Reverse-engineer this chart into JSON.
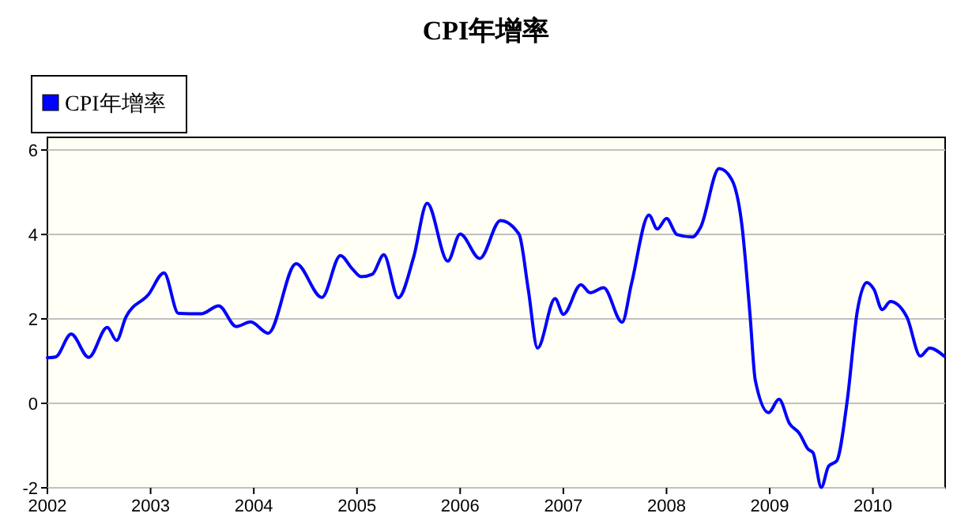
{
  "chart_data": {
    "type": "line",
    "title": "CPI年增率",
    "xlim": [
      2002,
      2010.7
    ],
    "xticks": [
      2002,
      2003,
      2004,
      2005,
      2006,
      2007,
      2008,
      2009,
      2010
    ],
    "ylim": [
      -2,
      6.3
    ],
    "yticks": [
      -2,
      0,
      2,
      4,
      6
    ],
    "grid": "y",
    "legend": "top left",
    "marker": "none",
    "line_style": "solid",
    "x": [
      2002.0,
      2002.08,
      2002.23,
      2002.4,
      2002.58,
      2002.67,
      2002.76,
      2002.98,
      2003.13,
      2003.27,
      2003.49,
      2003.66,
      2003.83,
      2003.97,
      2004.14,
      2004.41,
      2004.66,
      2004.84,
      2004.95,
      2005.04,
      2005.15,
      2005.26,
      2005.4,
      2005.55,
      2005.68,
      2005.88,
      2006.0,
      2006.19,
      2006.39,
      2006.57,
      2006.66,
      2006.75,
      2006.92,
      2007.0,
      2007.17,
      2007.26,
      2007.39,
      2007.57,
      2007.66,
      2007.83,
      2007.91,
      2008.0,
      2008.1,
      2008.25,
      2008.33,
      2008.51,
      2008.63,
      2008.73,
      2008.81,
      2008.86,
      2008.99,
      2009.09,
      2009.19,
      2009.29,
      2009.37,
      2009.42,
      2009.5,
      2009.57,
      2009.65,
      2009.75,
      2009.85,
      2009.94,
      2010.01,
      2010.09,
      2010.17,
      2010.33,
      2010.46,
      2010.55,
      2010.69
    ],
    "series": [
      {
        "name": "CPI年增率",
        "color": "#0000ff",
        "values": [
          1.08,
          1.1,
          1.64,
          1.09,
          1.8,
          1.49,
          2.04,
          2.58,
          3.09,
          2.13,
          2.12,
          2.31,
          1.82,
          1.93,
          1.66,
          3.31,
          2.51,
          3.5,
          3.2,
          3.0,
          3.06,
          3.52,
          2.5,
          3.47,
          4.74,
          3.37,
          4.01,
          3.43,
          4.33,
          4.01,
          2.7,
          1.31,
          2.48,
          2.11,
          2.81,
          2.62,
          2.74,
          1.92,
          2.83,
          4.46,
          4.13,
          4.38,
          4.0,
          3.94,
          4.17,
          5.56,
          5.31,
          4.23,
          2.07,
          0.55,
          -0.22,
          0.1,
          -0.47,
          -0.72,
          -1.08,
          -1.17,
          -1.99,
          -1.49,
          -1.36,
          0.04,
          2.2,
          2.86,
          2.7,
          2.22,
          2.41,
          2.04,
          1.12,
          1.31,
          1.12
        ]
      }
    ]
  }
}
